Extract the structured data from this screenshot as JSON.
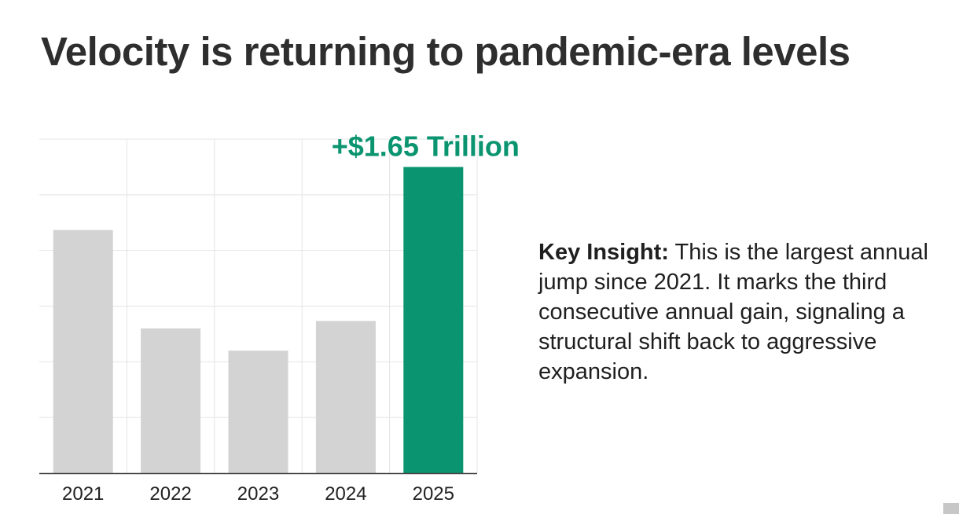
{
  "title": "Velocity is returning to pandemic-era levels",
  "insight": {
    "label": "Key Insight:",
    "text": "This is the largest annual jump since 2021. It marks the third consecutive annual gain, signaling a structural shift back to aggressive expansion."
  },
  "chart_data": {
    "type": "bar",
    "title": "",
    "xlabel": "",
    "ylabel": "",
    "categories": [
      "2021",
      "2022",
      "2023",
      "2024",
      "2025"
    ],
    "values": [
      1.31,
      0.78,
      0.66,
      0.82,
      1.65
    ],
    "highlight_index": 4,
    "annotation": "+$1.65 Trillion",
    "ylim": [
      0,
      1.8
    ],
    "grid": true,
    "legend": "none",
    "colors": {
      "bar": "#d3d3d3",
      "highlight": "#0a9470",
      "annotation": "#0a9470",
      "grid": "#e4e4e4",
      "axis": "#444444"
    }
  }
}
